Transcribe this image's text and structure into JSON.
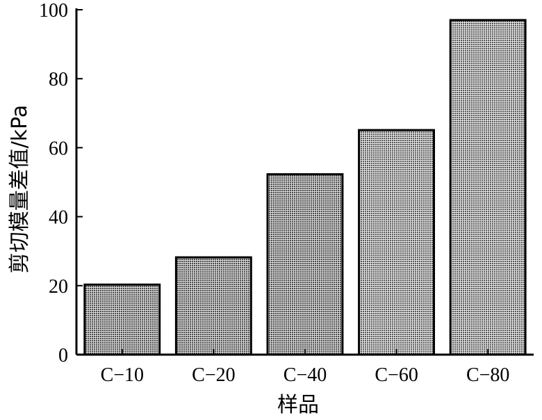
{
  "chart_data": {
    "type": "bar",
    "categories": [
      "C−10",
      "C−20",
      "C−40",
      "C−60",
      "C−80"
    ],
    "values": [
      20.3,
      28.2,
      52.3,
      65.1,
      97
    ],
    "xlabel": "样品",
    "ylabel": "剪切模量差值/kPa",
    "ylim": [
      0,
      100
    ],
    "yticks": [
      0,
      20,
      40,
      60,
      80,
      100
    ],
    "grid": false,
    "legend": "none",
    "bar_fill": "#8c8c8c",
    "bar_edge": "#000000"
  }
}
